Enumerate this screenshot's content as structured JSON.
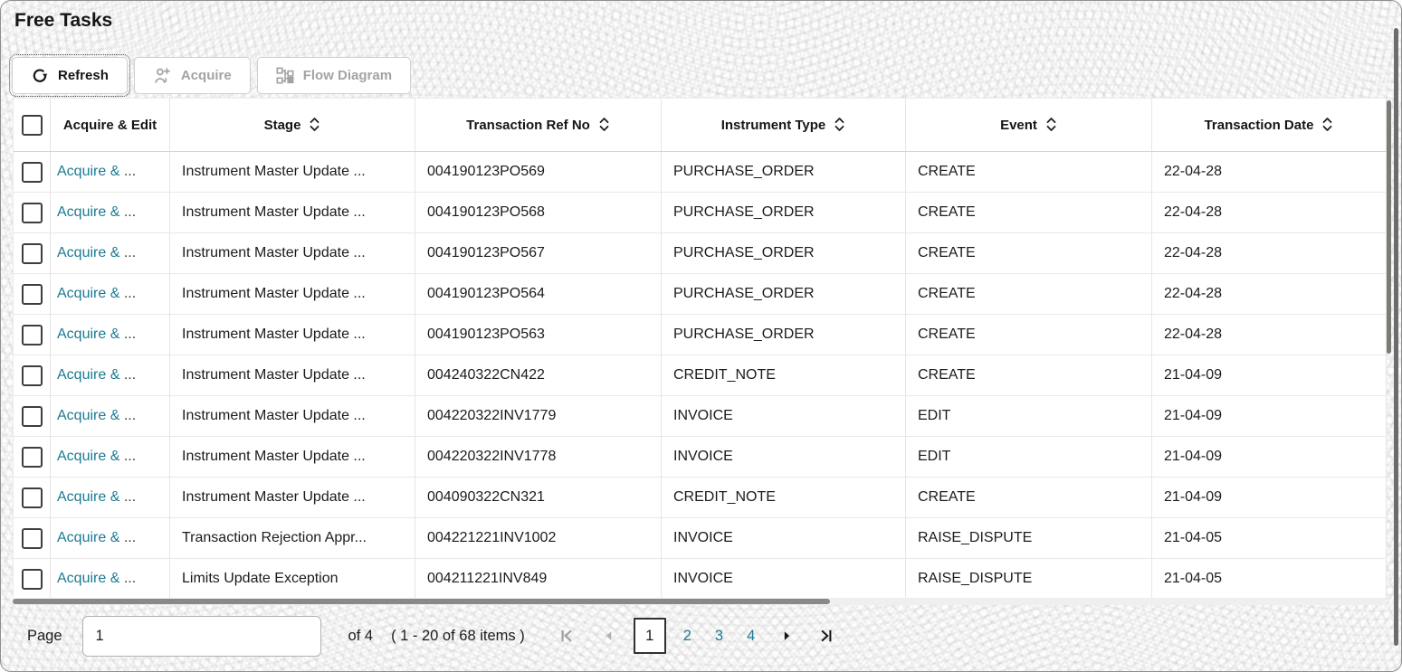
{
  "page": {
    "title": "Free Tasks"
  },
  "toolbar": {
    "refresh_label": "Refresh",
    "acquire_label": "Acquire",
    "flow_diagram_label": "Flow Diagram"
  },
  "table": {
    "action_label": "Acquire & ",
    "action_ellipsis": "...",
    "columns": [
      {
        "label": "Acquire & Edit",
        "sortable": false
      },
      {
        "label": "Stage",
        "sortable": true
      },
      {
        "label": "Transaction Ref No",
        "sortable": true
      },
      {
        "label": "Instrument Type",
        "sortable": true
      },
      {
        "label": "Event",
        "sortable": true
      },
      {
        "label": "Transaction Date",
        "sortable": true
      }
    ],
    "rows": [
      {
        "stage": "Instrument Master Update ...",
        "ref": "004190123PO569",
        "type": "PURCHASE_ORDER",
        "event": "CREATE",
        "date": "22-04-28"
      },
      {
        "stage": "Instrument Master Update ...",
        "ref": "004190123PO568",
        "type": "PURCHASE_ORDER",
        "event": "CREATE",
        "date": "22-04-28"
      },
      {
        "stage": "Instrument Master Update ...",
        "ref": "004190123PO567",
        "type": "PURCHASE_ORDER",
        "event": "CREATE",
        "date": "22-04-28"
      },
      {
        "stage": "Instrument Master Update ...",
        "ref": "004190123PO564",
        "type": "PURCHASE_ORDER",
        "event": "CREATE",
        "date": "22-04-28"
      },
      {
        "stage": "Instrument Master Update ...",
        "ref": "004190123PO563",
        "type": "PURCHASE_ORDER",
        "event": "CREATE",
        "date": "22-04-28"
      },
      {
        "stage": "Instrument Master Update ...",
        "ref": "004240322CN422",
        "type": "CREDIT_NOTE",
        "event": "CREATE",
        "date": "21-04-09"
      },
      {
        "stage": "Instrument Master Update ...",
        "ref": "004220322INV1779",
        "type": "INVOICE",
        "event": "EDIT",
        "date": "21-04-09"
      },
      {
        "stage": "Instrument Master Update ...",
        "ref": "004220322INV1778",
        "type": "INVOICE",
        "event": "EDIT",
        "date": "21-04-09"
      },
      {
        "stage": "Instrument Master Update ...",
        "ref": "004090322CN321",
        "type": "CREDIT_NOTE",
        "event": "CREATE",
        "date": "21-04-09"
      },
      {
        "stage": "Transaction Rejection Appr...",
        "ref": "004221221INV1002",
        "type": "INVOICE",
        "event": "RAISE_DISPUTE",
        "date": "21-04-05"
      },
      {
        "stage": "Limits Update Exception",
        "ref": "004211221INV849",
        "type": "INVOICE",
        "event": "RAISE_DISPUTE",
        "date": "21-04-05"
      }
    ]
  },
  "pagination": {
    "page_label": "Page",
    "page_value": "1",
    "of_label": "of 4",
    "items_label": "( 1 - 20 of 68 items )",
    "pages": [
      "1",
      "2",
      "3",
      "4"
    ],
    "current_page": "1"
  },
  "colors": {
    "link": "#1a7b93",
    "text": "#161513",
    "disabled_text": "#a5a3a0",
    "row_border": "#eae8e6",
    "scrollbar": "#7d7b78"
  }
}
